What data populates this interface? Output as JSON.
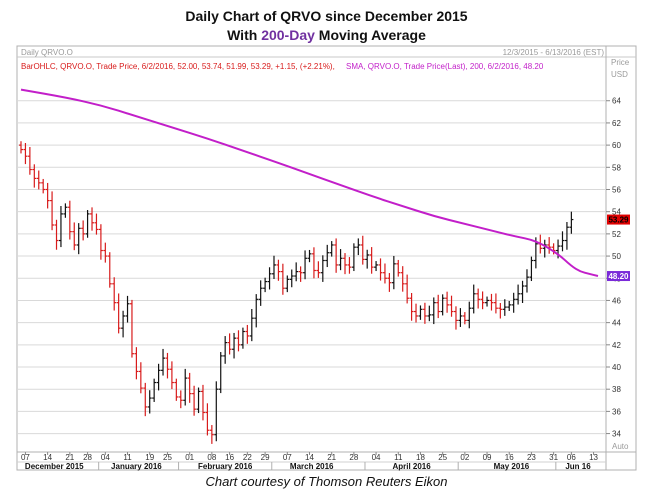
{
  "header": {
    "title_line1": "Daily Chart of QRVO since December 2015",
    "title_line2_prefix": "With ",
    "title_line2_accent": "200-Day",
    "title_line2_suffix": " Moving Average"
  },
  "footer": {
    "credit": "Chart courtesy of Thomson Reuters Eikon"
  },
  "chart_data": {
    "type": "ohlc",
    "panel_title": "Daily QRVO.O",
    "date_range": "12/3/2015 - 6/13/2016 (EST)",
    "price_label": "Price",
    "currency_label": "USD",
    "auto_label": "Auto",
    "legend_bar": "BarOHLC, QRVO.O, Trade Price, 6/2/2016, 52.00, 53.74, 51.99, 53.29, +1.15, (+2.21%),",
    "legend_sma": "SMA, QRVO.O, Trade Price(Last),  200, 6/2/2016, 48.20",
    "last_price_label": "53.29",
    "sma_label": "48.20",
    "last_price": 53.29,
    "sma_last": 48.2,
    "ylim": [
      32.7,
      66.5
    ],
    "y_ticks": [
      34,
      36,
      38,
      40,
      42,
      44,
      46,
      48,
      50,
      52,
      54,
      56,
      58,
      60,
      62,
      64
    ],
    "y_tick_labels": [
      "34",
      "36",
      "38",
      "40",
      "42",
      "44",
      "46",
      "48",
      "50",
      "52",
      "54",
      "56",
      "58",
      "60",
      "62",
      "64"
    ],
    "x_day_labels": [
      "07",
      "14",
      "21",
      "28",
      "04",
      "11",
      "19",
      "25",
      "01",
      "08",
      "16",
      "22",
      "29",
      "07",
      "14",
      "21",
      "28",
      "04",
      "11",
      "18",
      "25",
      "02",
      "09",
      "16",
      "23",
      "31",
      "06",
      "13"
    ],
    "x_day_index": [
      1,
      6,
      11,
      15,
      19,
      24,
      29,
      33,
      38,
      43,
      47,
      51,
      55,
      60,
      65,
      70,
      75,
      80,
      85,
      90,
      95,
      100,
      105,
      110,
      115,
      120,
      124,
      129
    ],
    "x_month_labels": [
      "December 2015",
      "January 2016",
      "February 2016",
      "March 2016",
      "April 2016",
      "May 2016",
      "Jun 16"
    ],
    "x_month_center_index": [
      7.5,
      26,
      46,
      65.5,
      88,
      110.5,
      125.5
    ],
    "x_month_separator_index": [
      17.5,
      35.5,
      56.5,
      77.5,
      98.5,
      120.5
    ],
    "x_count": 131,
    "closes": [
      59.6,
      59.0,
      57.8,
      57.0,
      56.6,
      56.0,
      55.0,
      52.8,
      51.4,
      53.8,
      54.4,
      52.2,
      51.0,
      52.5,
      52.0,
      53.8,
      53.0,
      52.4,
      50.5,
      50.0,
      47.5,
      45.8,
      43.5,
      44.6,
      45.7,
      41.2,
      39.6,
      38.1,
      36.4,
      37.2,
      38.6,
      39.7,
      40.8,
      39.8,
      38.6,
      37.3,
      37.0,
      39.0,
      37.6,
      36.2,
      37.8,
      35.9,
      34.3,
      33.9,
      38.0,
      41.0,
      42.2,
      41.6,
      42.6,
      42.0,
      43.2,
      42.8,
      44.4,
      46.1,
      47.1,
      47.7,
      48.4,
      49.2,
      48.6,
      47.1,
      47.9,
      48.2,
      48.6,
      48.5,
      49.8,
      50.2,
      48.7,
      48.5,
      49.6,
      50.3,
      51.0,
      49.2,
      49.8,
      49.2,
      49.0,
      50.8,
      51.0,
      49.7,
      50.1,
      49.0,
      49.2,
      48.5,
      48.0,
      47.6,
      49.3,
      48.5,
      47.5,
      46.2,
      45.0,
      44.6,
      45.2,
      44.6,
      44.7,
      45.8,
      45.0,
      46.2,
      45.6,
      45.0,
      44.2,
      44.6,
      44.2,
      45.3,
      46.6,
      46.1,
      45.8,
      46.0,
      45.8,
      45.3,
      45.2,
      45.4,
      45.6,
      46.1,
      46.6,
      47.3,
      48.1,
      49.6,
      51.1,
      50.7,
      51.0,
      50.8,
      50.5,
      50.9,
      51.4,
      52.6,
      53.29
    ],
    "sma": [
      65.0,
      64.3,
      63.6,
      62.6,
      61.6,
      60.6,
      59.5,
      58.4,
      57.4,
      56.4,
      55.4,
      54.5,
      53.6,
      52.9,
      52.3,
      51.8,
      51.4,
      50.2,
      49.1,
      48.6,
      48.4,
      48.2
    ],
    "sma_index": [
      0,
      10,
      18,
      26,
      34,
      42,
      50,
      58,
      65,
      72,
      79,
      86,
      93,
      100,
      106,
      111,
      116,
      121,
      124,
      126,
      128,
      130
    ]
  }
}
